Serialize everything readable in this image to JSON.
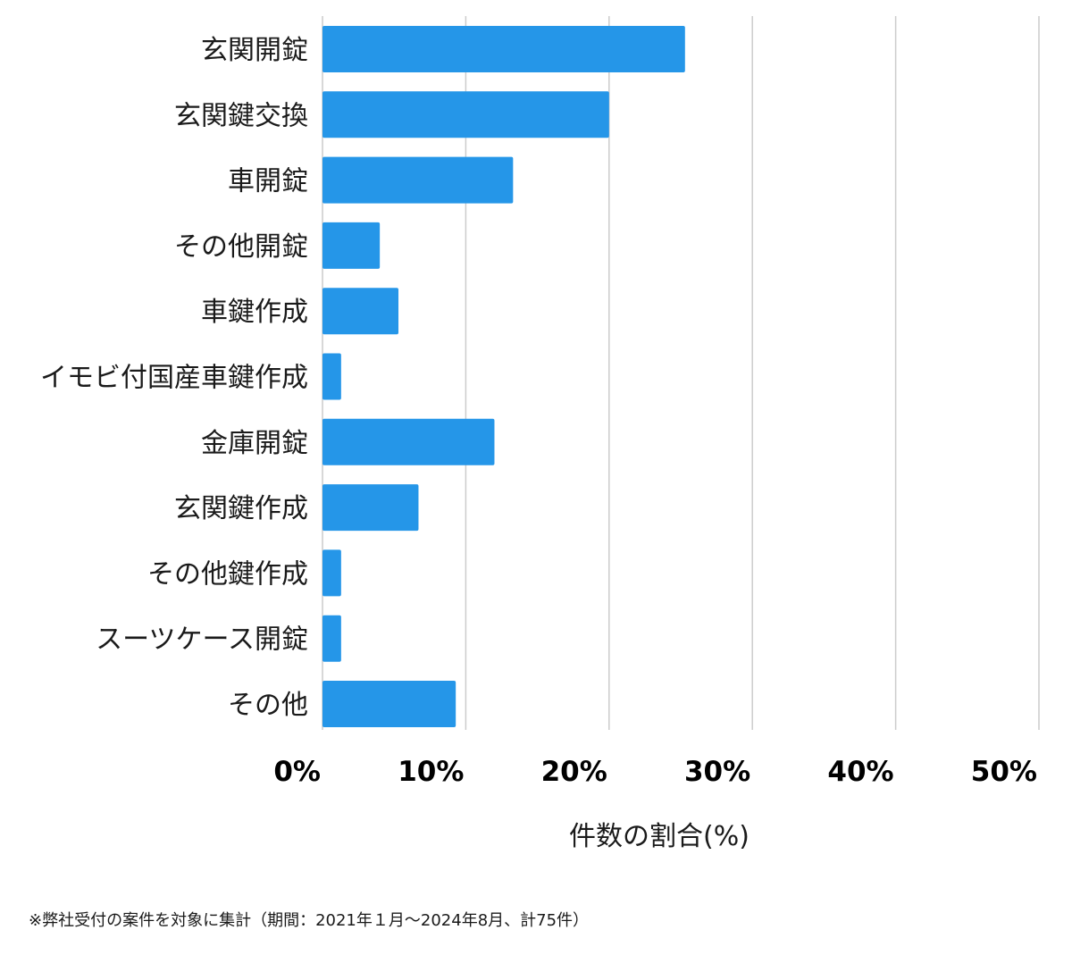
{
  "chart_data": {
    "type": "bar",
    "orientation": "horizontal",
    "categories": [
      "玄関開錠",
      "玄関鍵交換",
      "車開錠",
      "その他開錠",
      "車鍵作成",
      "イモビ付国産車鍵作成",
      "金庫開錠",
      "玄関鍵作成",
      "その他鍵作成",
      "スーツケース開錠",
      "その他"
    ],
    "values": [
      25.3,
      20.0,
      13.3,
      4.0,
      5.3,
      1.3,
      12.0,
      6.7,
      1.3,
      1.3,
      9.3
    ],
    "xlabel": "件数の割合(%)",
    "xlim": [
      0,
      50
    ],
    "xticks": [
      "0%",
      "10%",
      "20%",
      "30%",
      "40%",
      "50%"
    ],
    "grid": "vertical",
    "bar_color": "#2596e8",
    "grid_color": "#cccccc"
  },
  "footnote": "※弊社受付の案件を対象に集計（期間：2021年１月〜2024年8月、計75件）"
}
